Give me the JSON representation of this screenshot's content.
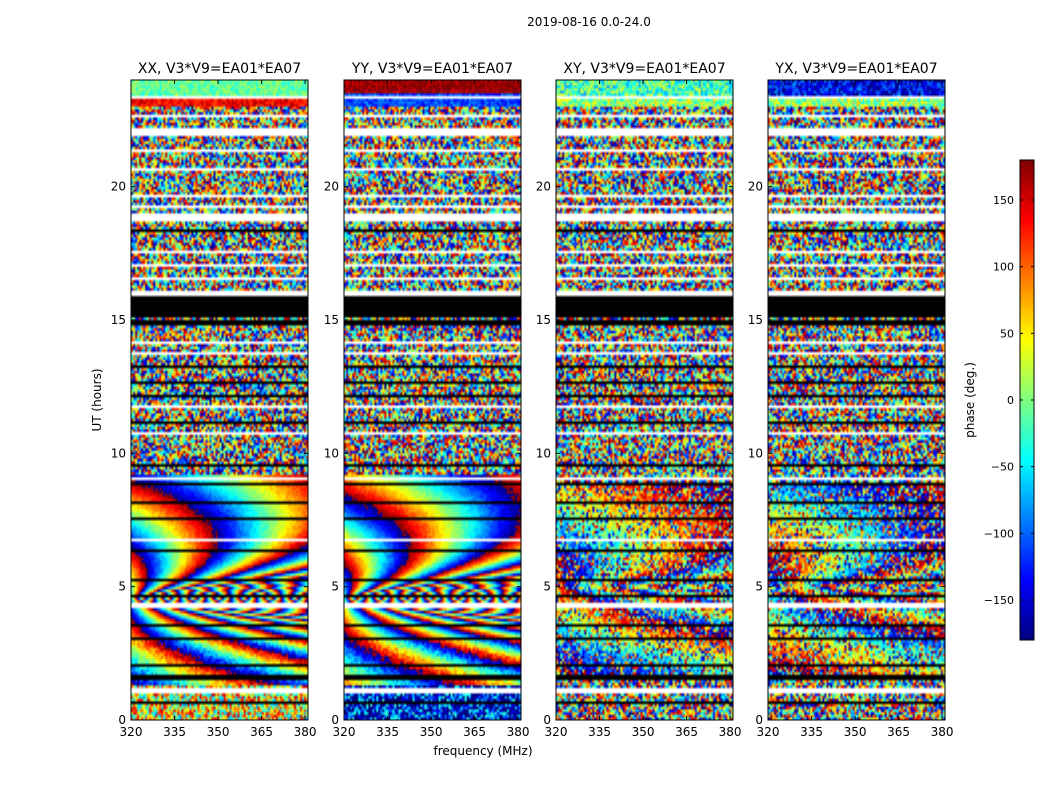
{
  "chart_data": {
    "type": "heatmap",
    "suptitle": "2019-08-16 0.0-24.0",
    "xlabel": "frequency (MHz)",
    "ylabel": "UT (hours)",
    "xlim": [
      320,
      381
    ],
    "ylim": [
      0,
      24
    ],
    "xticks": [
      320,
      335,
      350,
      365,
      380
    ],
    "yticks": [
      0,
      5,
      10,
      15,
      20
    ],
    "panels": [
      {
        "title": "XX, V3*V9=EA01*EA07",
        "pol": "XX"
      },
      {
        "title": "YY, V3*V9=EA01*EA07",
        "pol": "YY"
      },
      {
        "title": "XY, V3*V9=EA01*EA07",
        "pol": "XY"
      },
      {
        "title": "YX, V3*V9=EA01*EA07",
        "pol": "YX"
      }
    ],
    "colorbar": {
      "label": "phase (deg.)",
      "range": [
        -180,
        180
      ],
      "ticks": [
        150,
        100,
        50,
        0,
        -50,
        -100,
        -150
      ],
      "tick_labels": [
        "150",
        "100",
        "50",
        "0",
        "−50",
        "−100",
        "−150"
      ],
      "colormap": "jet"
    }
  },
  "colors": {
    "flagged": "#000000",
    "blank": "#ffffff",
    "frame": "#000000"
  }
}
